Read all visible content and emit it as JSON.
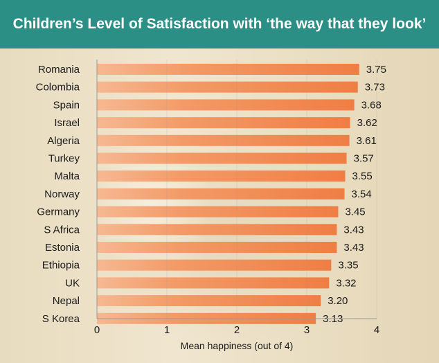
{
  "title": "Children’s Level of Satisfaction with ‘the way that they look’",
  "colors": {
    "header": "#2c8f86",
    "bar": "#f0824a",
    "bar_highlight": "#f7b58d",
    "axis": "#9a9a9a"
  },
  "chart_data": {
    "type": "bar",
    "orientation": "horizontal",
    "title": "Children’s Level of Satisfaction with ‘the way that they look’",
    "xlabel": "Mean happiness (out of 4)",
    "ylabel": "",
    "xlim": [
      0,
      4
    ],
    "xticks": [
      "0",
      "1",
      "2",
      "3",
      "4"
    ],
    "grid": false,
    "categories": [
      "Romania",
      "Colombia",
      "Spain",
      "Israel",
      "Algeria",
      "Turkey",
      "Malta",
      "Norway",
      "Germany",
      "S Africa",
      "Estonia",
      "Ethiopia",
      "UK",
      "Nepal",
      "S Korea"
    ],
    "values": [
      3.75,
      3.73,
      3.68,
      3.62,
      3.61,
      3.57,
      3.55,
      3.54,
      3.45,
      3.43,
      3.43,
      3.35,
      3.32,
      3.2,
      3.13
    ],
    "value_labels": [
      "3.75",
      "3.73",
      "3.68",
      "3.62",
      "3.61",
      "3.57",
      "3.55",
      "3.54",
      "3.45",
      "3.43",
      "3.43",
      "3.35",
      "3.32",
      "3.20",
      "3.13"
    ]
  }
}
